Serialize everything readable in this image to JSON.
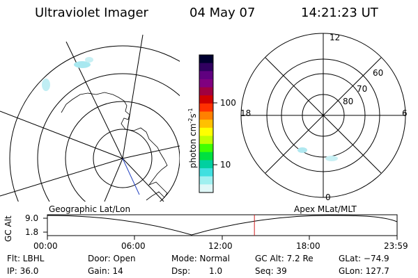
{
  "header": {
    "instrument": "Ultraviolet Imager",
    "date": "04 May 07",
    "time": "14:21:23 UT"
  },
  "colorbar": {
    "unit_label": "photon cm",
    "unit_exp1": "-2",
    "unit_mid": "s",
    "unit_exp2": "-1",
    "ticks": [
      "100",
      "10"
    ],
    "colors": [
      "#000030",
      "#300060",
      "#600080",
      "#800080",
      "#a00040",
      "#d00000",
      "#ff3000",
      "#ff8000",
      "#ffc000",
      "#ffff00",
      "#c0ff00",
      "#40ff00",
      "#00e040",
      "#00d0a0",
      "#40e0e0",
      "#a0f0f0",
      "#e0f8f8"
    ]
  },
  "polar_plot": {
    "lat_labels": [
      "80",
      "70",
      "60"
    ],
    "mlt_labels": {
      "top": "12",
      "left": "18",
      "right": "6",
      "bottom": "0"
    }
  },
  "altitude_plot": {
    "left_title": "Geographic Lat/Lon",
    "right_title": "Apex MLat/MLT",
    "ylabel": "GC Alt",
    "yticks": [
      "9.0",
      "1.8"
    ],
    "xticks": [
      "00:00",
      "06:00",
      "12:00",
      "18:00",
      "23:59"
    ],
    "current_time_fraction": 0.592
  },
  "status": {
    "filter": "Flt: LBHL",
    "door": "Door: Open",
    "mode": "Mode: Normal",
    "gc_alt": "GC Alt: 7.2 Re",
    "glat": "GLat: −74.9",
    "ip": "IP: 36.0",
    "gain": "Gain: 14",
    "dsp_label": "Dsp:",
    "dsp_value": "1.0",
    "seq": "Seq: 39",
    "glon": "GLon: 127.7"
  }
}
